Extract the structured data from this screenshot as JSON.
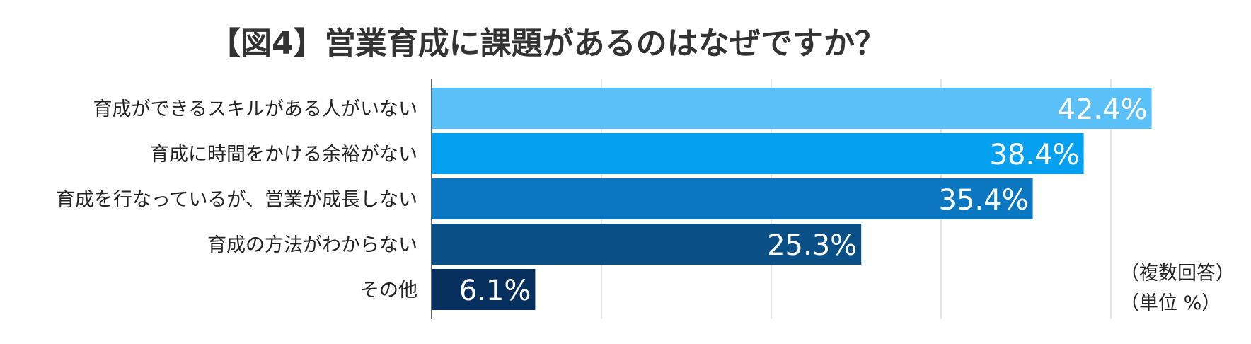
{
  "chart_data": {
    "type": "bar",
    "orientation": "horizontal",
    "title": "【図4】営業育成に課題があるのはなぜですか？",
    "categories": [
      "育成ができるスキルがある人がいない",
      "育成に時間をかける余裕がない",
      "育成を行なっているが、営業が成長しない",
      "育成の方法がわからない",
      "その他"
    ],
    "values": [
      42.4,
      38.4,
      35.4,
      25.3,
      6.1
    ],
    "value_labels": [
      "42.4%",
      "38.4%",
      "35.4%",
      "25.3%",
      "6.1%"
    ],
    "bar_colors": [
      "#5bbff8",
      "#05a0f0",
      "#0a77c0",
      "#0a4f86",
      "#07305e"
    ],
    "xlim": [
      0,
      50
    ],
    "x_gridlines": [
      10,
      20,
      30,
      40
    ],
    "grid": true,
    "notes": [
      "（複数回答）",
      "（単位 %）"
    ]
  }
}
